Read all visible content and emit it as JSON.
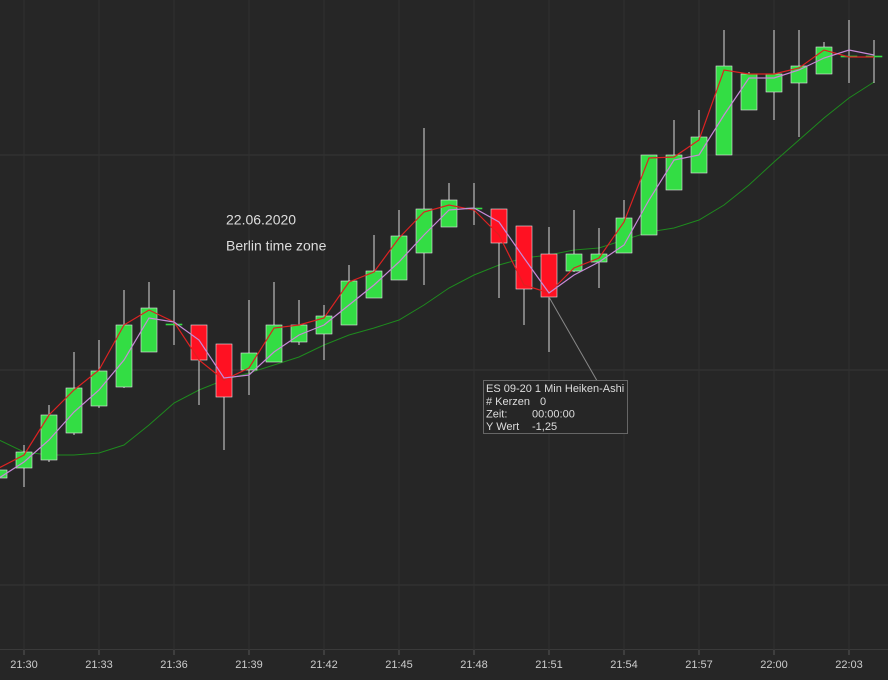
{
  "chart_data": {
    "type": "candlestick",
    "categories": [
      null,
      "21:30",
      null,
      null,
      "21:33",
      null,
      null,
      "21:36",
      null,
      null,
      "21:39",
      null,
      null,
      "21:42",
      null,
      null,
      "21:45",
      null,
      null,
      "21:48",
      null,
      null,
      "21:51",
      null,
      null,
      "21:54",
      null,
      null,
      "21:57",
      null,
      null,
      "22:00",
      null,
      null,
      "22:03",
      null
    ],
    "open": [
      17.2,
      18.2,
      19.0,
      21.7,
      24.4,
      26.3,
      29.8,
      32.5,
      32.5,
      30.6,
      28.0,
      28.8,
      30.8,
      31.6,
      32.5,
      35.2,
      37.0,
      39.7,
      42.3,
      44.1,
      44.1,
      42.4,
      39.6,
      37.9,
      38.8,
      39.7,
      41.5,
      46.0,
      47.7,
      49.5,
      54.0,
      55.8,
      56.7,
      57.6,
      59.3,
      59.3
    ],
    "close": [
      18.0,
      19.8,
      23.5,
      26.2,
      27.9,
      32.5,
      34.2,
      32.6,
      29.0,
      25.3,
      29.7,
      32.5,
      32.5,
      33.4,
      36.9,
      37.9,
      41.4,
      44.1,
      45.0,
      44.2,
      40.7,
      36.1,
      35.3,
      39.6,
      39.6,
      43.2,
      49.5,
      49.5,
      51.3,
      58.4,
      57.6,
      57.6,
      58.4,
      60.3,
      59.4,
      59.4
    ],
    "high": [
      18.0,
      20.5,
      24.5,
      29.8,
      31.0,
      36.0,
      36.8,
      36.0,
      32.5,
      30.6,
      35.0,
      36.8,
      35.0,
      34.5,
      38.5,
      41.5,
      44.0,
      52.2,
      46.7,
      46.7,
      44.1,
      42.4,
      42.3,
      44.0,
      42.2,
      45.0,
      49.5,
      53.0,
      54.0,
      62.0,
      57.8,
      62.0,
      62.0,
      60.8,
      63.0,
      61.0
    ],
    "low": [
      17.2,
      16.3,
      18.8,
      21.5,
      24.2,
      26.2,
      29.8,
      30.5,
      24.5,
      20.0,
      25.5,
      28.8,
      30.5,
      29.0,
      32.5,
      35.2,
      37.0,
      36.5,
      42.3,
      42.5,
      35.2,
      32.5,
      29.8,
      37.8,
      36.2,
      39.7,
      41.5,
      46.0,
      47.7,
      49.5,
      54.0,
      53.0,
      51.3,
      57.6,
      56.7,
      56.7
    ],
    "up_color": "#33dd44",
    "down_color": "#ff1122",
    "lines": [
      {
        "color": "#dd2222",
        "values": [
          18.2,
          19.5,
          23.5,
          26.0,
          28.0,
          32.5,
          34.0,
          32.8,
          29.0,
          27.0,
          28.2,
          32.2,
          32.5,
          33.2,
          36.8,
          37.8,
          41.2,
          43.8,
          44.5,
          44.0,
          41.5,
          36.5,
          35.7,
          38.2,
          39.2,
          42.8,
          49.2,
          49.3,
          51.0,
          58.0,
          57.6,
          57.6,
          58.2,
          60.0,
          59.3,
          59.3
        ]
      },
      {
        "color": "#c88ad8",
        "values": [
          17.2,
          18.8,
          21.0,
          23.8,
          26.0,
          29.0,
          33.2,
          32.8,
          31.0,
          27.2,
          27.5,
          29.8,
          31.5,
          32.5,
          34.5,
          36.5,
          38.8,
          41.5,
          44.0,
          44.2,
          42.8,
          39.2,
          35.7,
          37.5,
          38.8,
          40.5,
          45.0,
          49.0,
          49.5,
          53.5,
          57.2,
          57.2,
          58.0,
          59.2,
          60.0,
          59.5
        ]
      },
      {
        "color": "#1e8a1e",
        "values": [
          21.0,
          19.8,
          19.5,
          19.5,
          19.7,
          20.5,
          22.5,
          24.7,
          26.0,
          27.0,
          27.7,
          28.5,
          29.3,
          30.5,
          31.5,
          32.2,
          33.0,
          34.5,
          36.2,
          37.5,
          38.5,
          39.2,
          39.5,
          40.0,
          40.2,
          41.0,
          41.8,
          42.2,
          43.0,
          44.5,
          46.5,
          48.8,
          51.0,
          53.2,
          55.2,
          56.8
        ]
      }
    ],
    "ylim": [
      0,
      65
    ],
    "ygrid": [
      49.5,
      28,
      6.5
    ],
    "grid": true,
    "annotations": [
      "22.06.2020",
      "Berlin time zone"
    ],
    "tooltip": {
      "title": "ES 09-20 1 Min Heiken-Ashi",
      "rows": [
        [
          "# Kerzen",
          "0"
        ],
        [
          "Zeit:",
          "00:00:00"
        ],
        [
          "Y Wert",
          "-1,25"
        ]
      ],
      "index": 22
    }
  }
}
